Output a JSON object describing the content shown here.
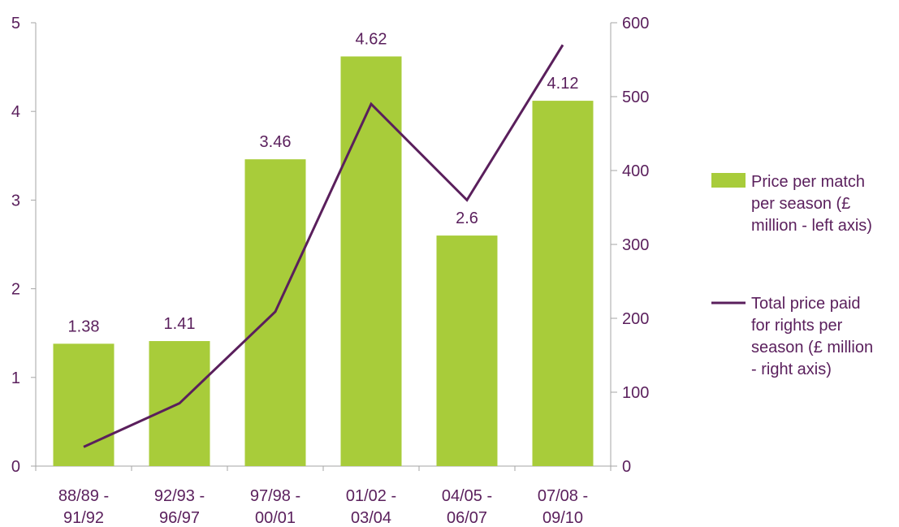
{
  "chart_data": {
    "type": "bar",
    "categories": [
      [
        "88/89 -",
        "91/92"
      ],
      [
        "92/93 -",
        "96/97"
      ],
      [
        "97/98 -",
        "00/01"
      ],
      [
        "01/02 -",
        "03/04"
      ],
      [
        "04/05 -",
        "06/07"
      ],
      [
        "07/08 -",
        "09/10"
      ]
    ],
    "series": [
      {
        "name": "Price per match per season (£ million - left axis)",
        "legend_lines": [
          "Price per match",
          "per season (£",
          "million - left axis)"
        ],
        "type": "bar",
        "axis": "left",
        "color": "#a8cc3a",
        "values": [
          1.38,
          1.41,
          3.46,
          4.62,
          2.6,
          4.12
        ],
        "data_labels": [
          "1.38",
          "1.41",
          "3.46",
          "4.62",
          "2.6",
          "4.12"
        ]
      },
      {
        "name": "Total price paid for rights per season (£ million - right axis)",
        "legend_lines": [
          "Total price paid",
          "for rights per",
          "season (£ million",
          "- right axis)"
        ],
        "type": "line",
        "axis": "right",
        "color": "#5a1f5c",
        "values": [
          26,
          85,
          209,
          490,
          360,
          570
        ]
      }
    ],
    "left_axis": {
      "ylim": [
        0,
        5
      ],
      "ticks": [
        "0",
        "1",
        "2",
        "3",
        "4",
        "5"
      ]
    },
    "right_axis": {
      "ylim": [
        0,
        600
      ],
      "ticks": [
        "0",
        "100",
        "200",
        "300",
        "400",
        "500",
        "600"
      ]
    },
    "grid": false,
    "legend_position": "right",
    "axis_color": "#a6a6a6",
    "text_color": "#5a1f5c"
  }
}
